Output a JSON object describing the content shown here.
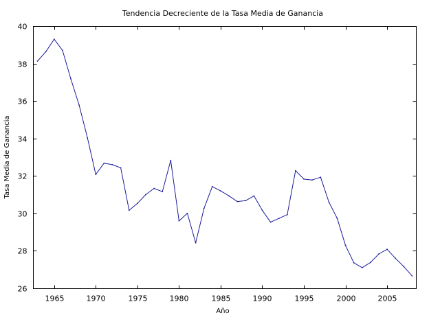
{
  "chart_data": {
    "type": "line",
    "title": "Tendencia Decreciente de la Tasa Media de Ganancia",
    "xlabel": "Año",
    "ylabel": "Tasa Media de Ganancia",
    "xlim": [
      1962.5,
      2008.5
    ],
    "ylim": [
      26,
      40
    ],
    "xticks": [
      1965,
      1970,
      1975,
      1980,
      1985,
      1990,
      1995,
      2000,
      2005
    ],
    "yticks": [
      26,
      28,
      30,
      32,
      34,
      36,
      38,
      40
    ],
    "grid": false,
    "legend": "none",
    "line_color": "#1a1a99",
    "series": [
      {
        "x": [
          1963,
          1964,
          1965,
          1966,
          1967,
          1968,
          1969,
          1970,
          1971,
          1972,
          1973,
          1974,
          1975,
          1976,
          1977,
          1978,
          1979,
          1980,
          1981,
          1982,
          1983,
          1984,
          1985,
          1986,
          1987,
          1988,
          1989,
          1990,
          1991,
          1992,
          1993,
          1994,
          1995,
          1996,
          1997,
          1998,
          1999,
          2000,
          2001,
          2002,
          2003,
          2004,
          2005,
          2006,
          2007,
          2008
        ],
        "values": [
          38.15,
          38.65,
          39.32,
          38.72,
          37.2,
          35.8,
          34.05,
          32.1,
          32.7,
          32.62,
          32.45,
          30.18,
          30.55,
          31.02,
          31.35,
          31.18,
          32.85,
          29.62,
          30.02,
          28.45,
          30.28,
          31.45,
          31.22,
          30.95,
          30.65,
          30.7,
          30.95,
          30.18,
          29.55,
          29.75,
          29.95,
          32.3,
          31.85,
          31.8,
          31.95,
          30.62,
          29.75,
          28.3,
          27.38,
          27.12,
          27.4,
          27.85,
          28.1,
          27.62,
          27.18,
          26.68
        ]
      }
    ]
  }
}
